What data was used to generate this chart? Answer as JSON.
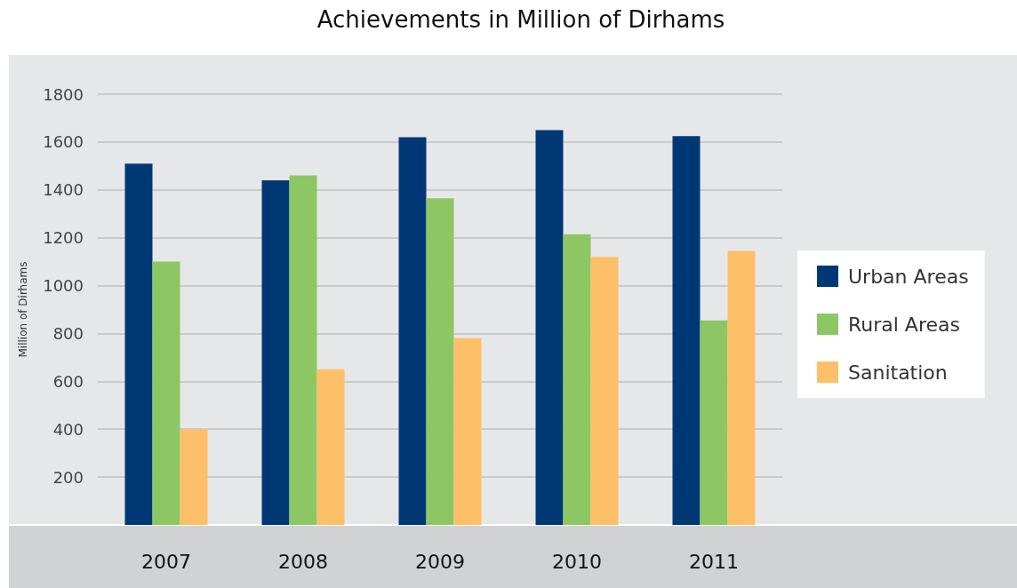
{
  "chart_data": {
    "type": "bar",
    "title": "Achievements in Million of Dirhams",
    "ylabel": "Million of Dirhams",
    "categories": [
      "2007",
      "2008",
      "2009",
      "2010",
      "2011"
    ],
    "series": [
      {
        "name": "Urban Areas",
        "color": "#003876",
        "values": [
          1510,
          1440,
          1620,
          1650,
          1625
        ]
      },
      {
        "name": "Rural Areas",
        "color": "#8cc764",
        "values": [
          1100,
          1460,
          1365,
          1215,
          855
        ]
      },
      {
        "name": "Sanitation",
        "color": "#fdc068",
        "values": [
          400,
          650,
          780,
          1120,
          1145
        ]
      }
    ],
    "ylim": [
      0,
      1800
    ],
    "yticks": [
      200,
      400,
      600,
      800,
      1000,
      1200,
      1400,
      1600,
      1800
    ],
    "grid": "y",
    "legend": "right"
  }
}
